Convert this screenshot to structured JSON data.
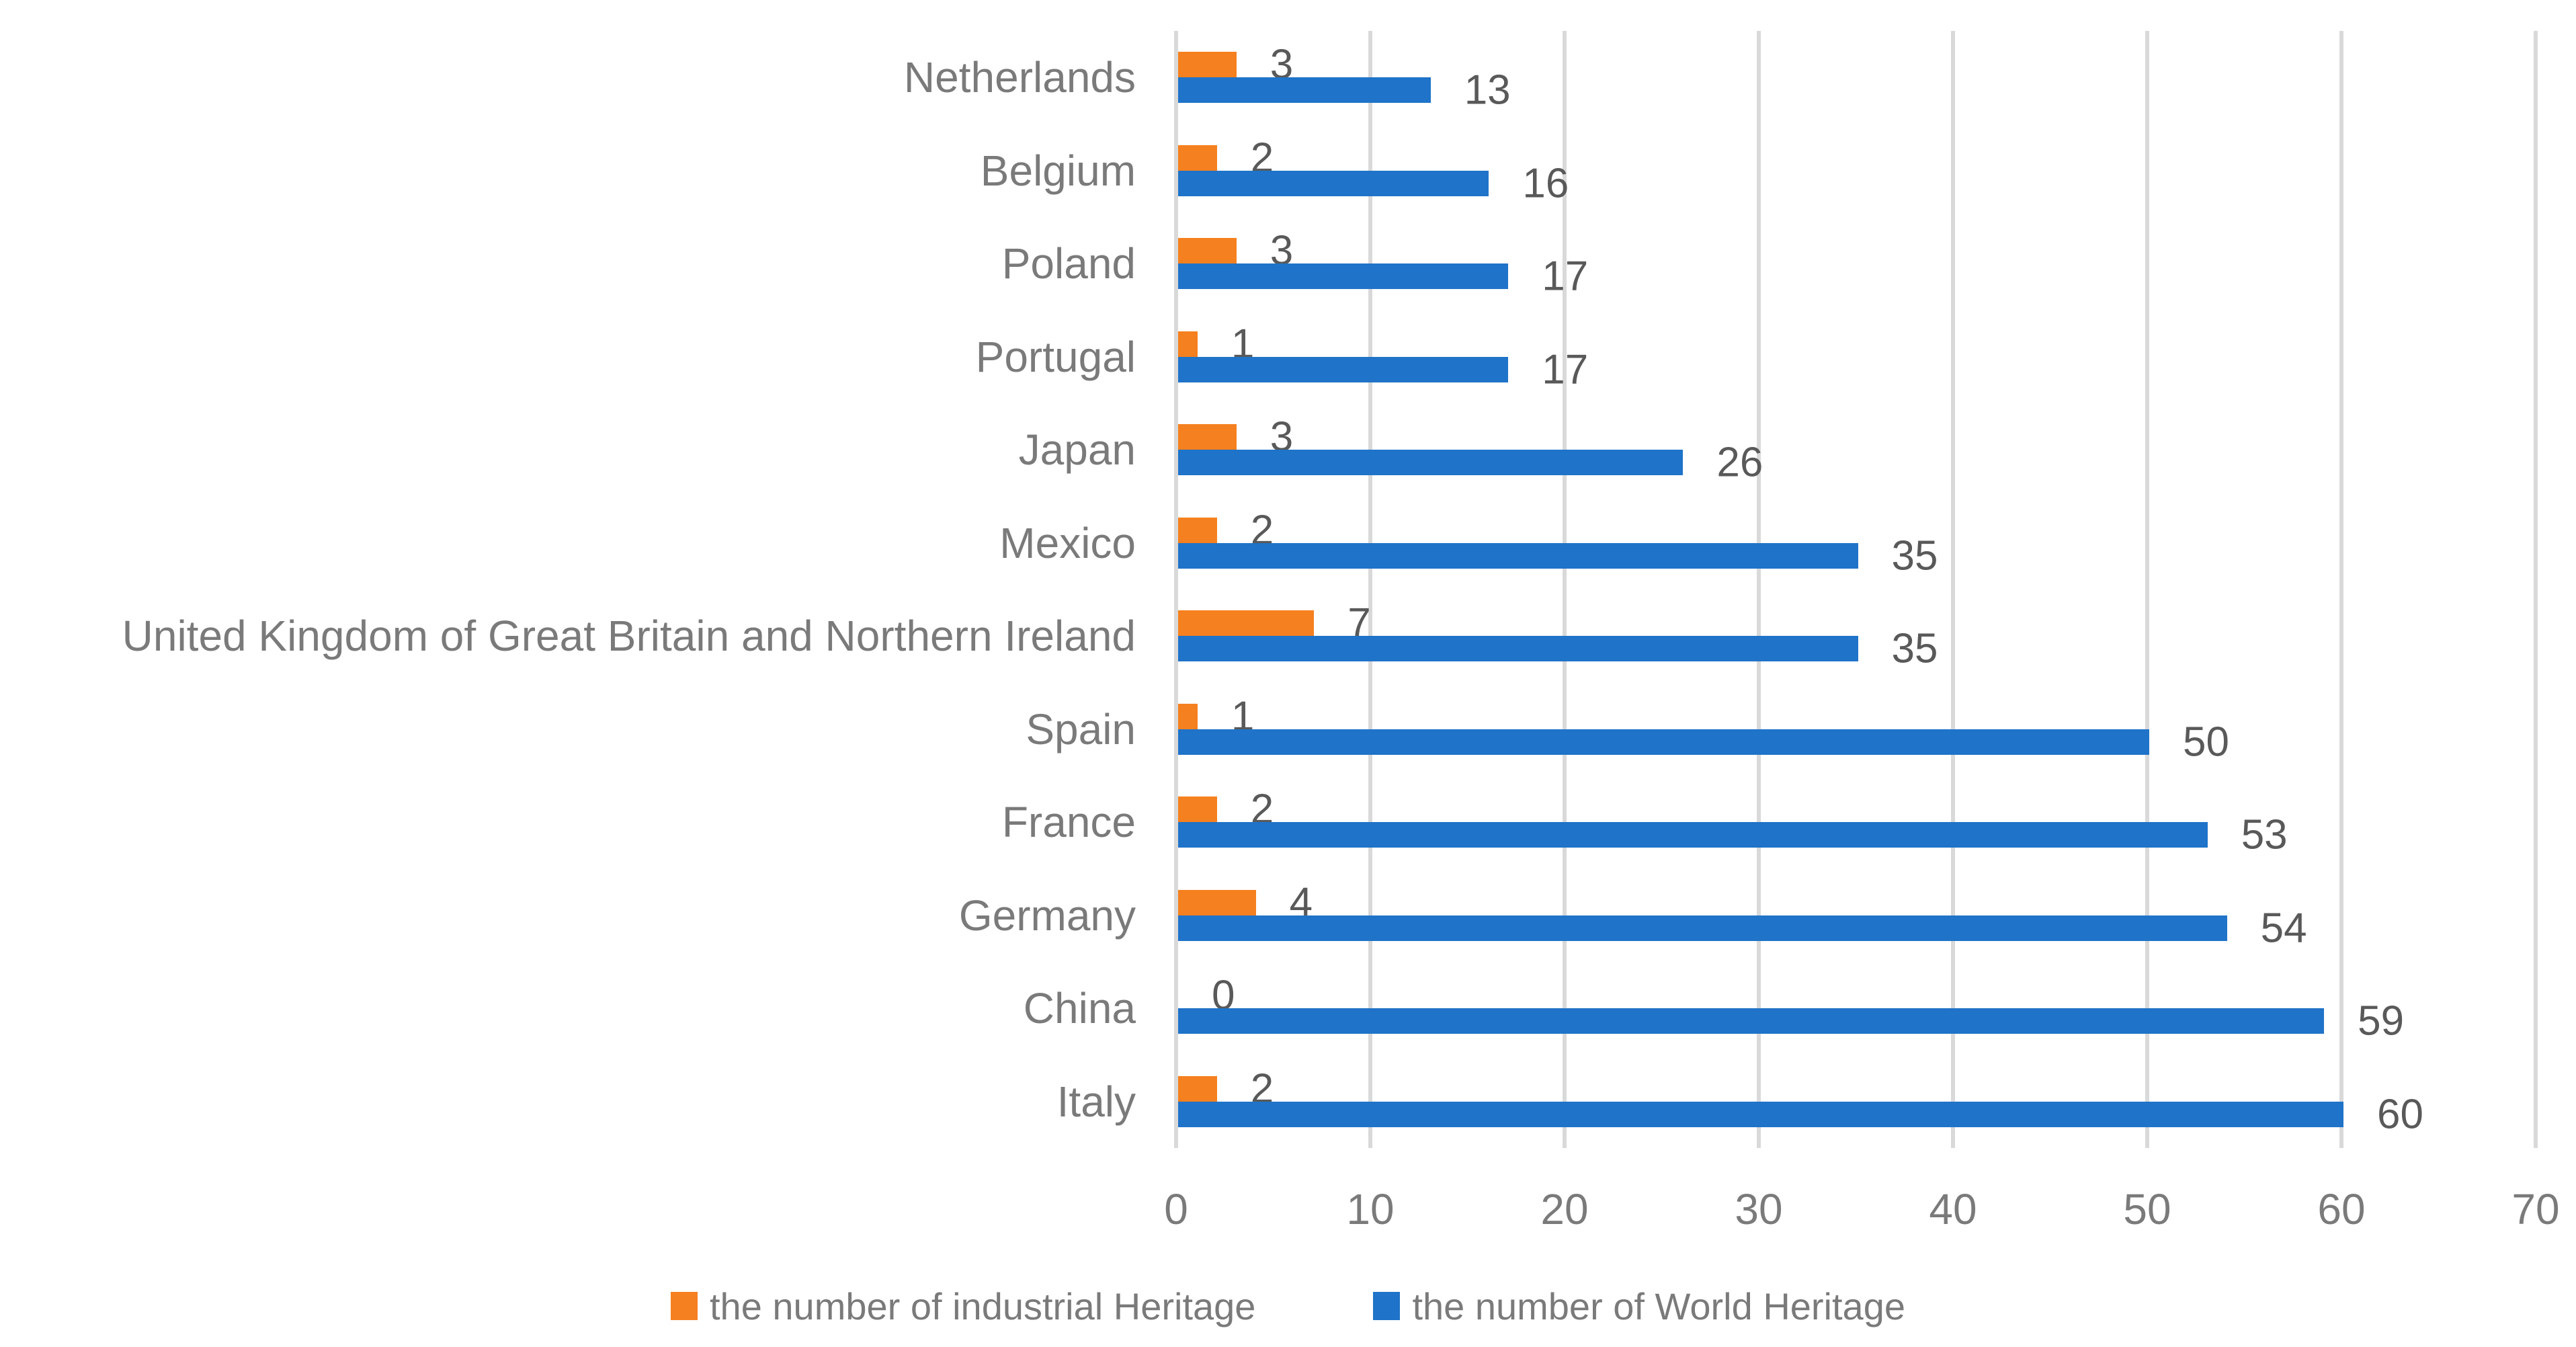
{
  "chart_data": {
    "type": "bar",
    "orientation": "horizontal",
    "title": "",
    "xlabel": "",
    "ylabel": "",
    "categories": [
      "Netherlands",
      "Belgium",
      "Poland",
      "Portugal",
      "Japan",
      "Mexico",
      "United Kingdom of Great Britain and Northern Ireland",
      "Spain",
      "France",
      "Germany",
      "China",
      "Italy"
    ],
    "series": [
      {
        "name": "the number of industrial Heritage",
        "color": "#F5801F",
        "values": [
          3,
          2,
          3,
          1,
          3,
          2,
          7,
          1,
          2,
          4,
          0,
          2
        ]
      },
      {
        "name": "the number of World Heritage",
        "color": "#1F73C8",
        "values": [
          13,
          16,
          17,
          17,
          26,
          35,
          35,
          50,
          53,
          54,
          59,
          60
        ]
      }
    ],
    "x_ticks": [
      0,
      10,
      20,
      30,
      40,
      50,
      60,
      70
    ],
    "xlim": [
      0,
      70
    ],
    "grid": true,
    "value_labels": "outside-end",
    "legend_position": "bottom"
  },
  "colors": {
    "background": "#FFFFFF",
    "gridline": "#D9D9D9",
    "axis_text": "#7A7A7A",
    "category_text": "#7A7A7A",
    "data_label_text": "#595959",
    "legend_text": "#7A7A7A"
  }
}
